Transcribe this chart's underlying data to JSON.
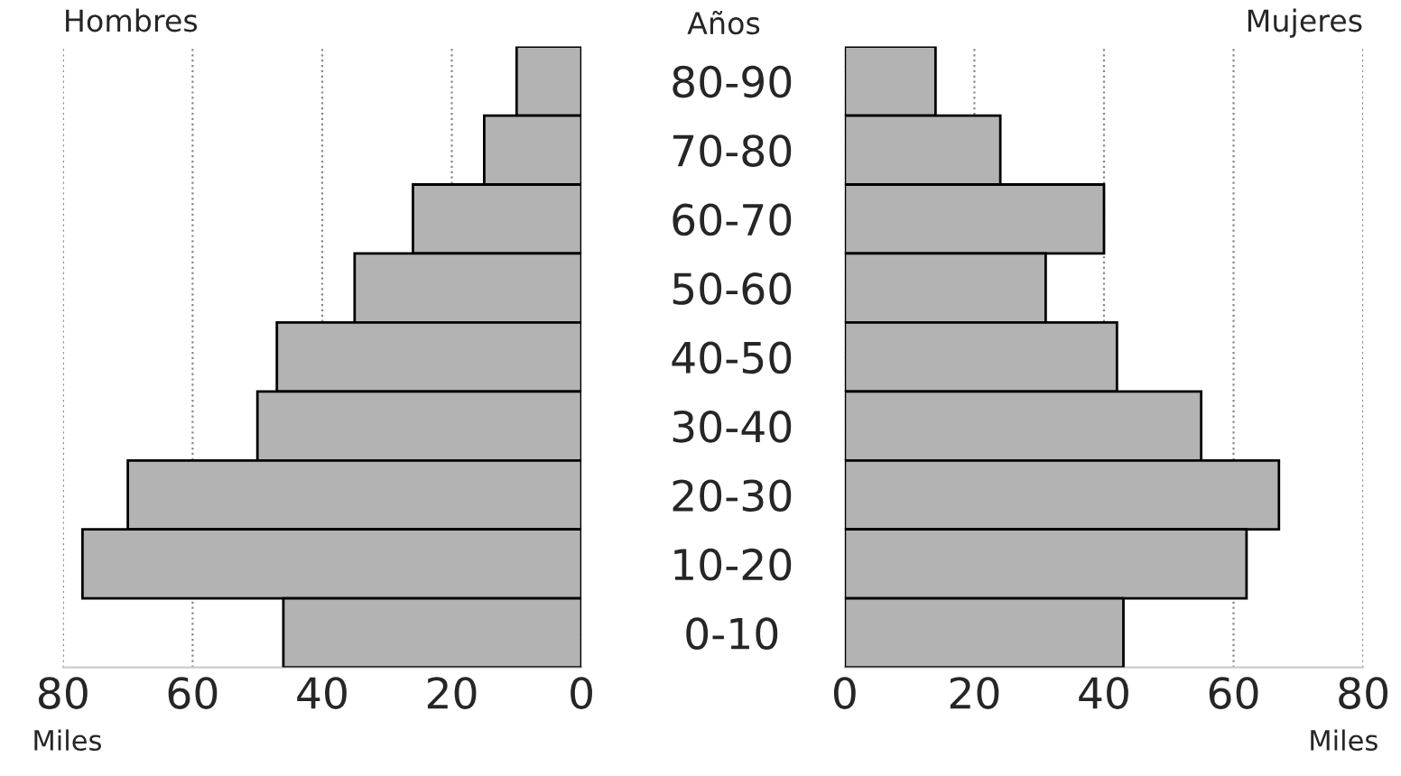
{
  "chart_data": [
    {
      "type": "bar",
      "orientation": "horizontal",
      "title": "Hombres",
      "xlabel": "Miles",
      "ylabel": "Años",
      "categories": [
        "80-90",
        "70-80",
        "60-70",
        "50-60",
        "40-50",
        "30-40",
        "20-30",
        "10-20",
        "0-10"
      ],
      "series": [
        {
          "color": "#b3b3b3",
          "values": [
            10,
            15,
            26,
            35,
            47,
            50,
            70,
            77,
            46
          ]
        }
      ],
      "xlim": [
        80,
        0
      ],
      "xticks": [
        80,
        60,
        40,
        20,
        0
      ],
      "grid": "x"
    },
    {
      "type": "bar",
      "orientation": "horizontal",
      "title": "Mujeres",
      "xlabel": "Miles",
      "categories": [
        null,
        null,
        null,
        null,
        null,
        null,
        null,
        null,
        null
      ],
      "series": [
        {
          "color": "#b3b3b3",
          "values": [
            14,
            24,
            40,
            31,
            42,
            55,
            67,
            62,
            43
          ]
        }
      ],
      "xlim": [
        0,
        80
      ],
      "xticks": [
        0,
        20,
        40,
        60,
        80
      ],
      "grid": "x",
      "tick_labels": "x"
    }
  ]
}
